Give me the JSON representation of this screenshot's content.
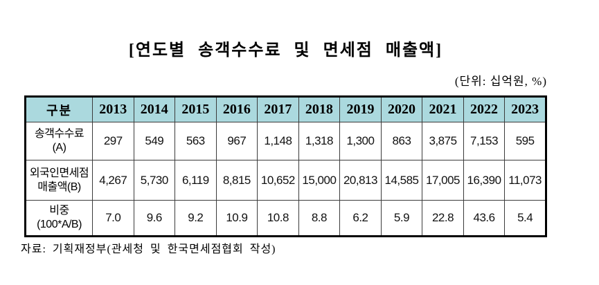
{
  "title": "[연도별 송객수수료 및 면세점 매출액]",
  "unit_note": "(단위: 십억원, %)",
  "source_note": "자료: 기획재정부(관세청 및 한국면세점협회 작성)",
  "colors": {
    "header_bg": "#abd9de",
    "outer_border": "#000000",
    "inner_border": "#3a3a3a"
  },
  "table": {
    "corner_header": "구분",
    "year_headers": [
      "2013",
      "2014",
      "2015",
      "2016",
      "2017",
      "2018",
      "2019",
      "2020",
      "2021",
      "2022",
      "2023"
    ],
    "rows": [
      {
        "label_lines": [
          "송객수수료",
          "(A)"
        ],
        "values": [
          "297",
          "549",
          "563",
          "967",
          "1,148",
          "1,318",
          "1,300",
          "863",
          "3,875",
          "7,153",
          "595"
        ]
      },
      {
        "label_lines": [
          "외국인면세점",
          "매출액(B)"
        ],
        "values": [
          "4,267",
          "5,730",
          "6,119",
          "8,815",
          "10,652",
          "15,000",
          "20,813",
          "14,585",
          "17,005",
          "16,390",
          "11,073"
        ]
      },
      {
        "label_lines": [
          "비중",
          "(100*A/B)"
        ],
        "values": [
          "7.0",
          "9.6",
          "9.2",
          "10.9",
          "10.8",
          "8.8",
          "6.2",
          "5.9",
          "22.8",
          "43.6",
          "5.4"
        ]
      }
    ]
  },
  "chart_data": {
    "type": "table",
    "title": "[연도별 송객수수료 및 면세점 매출액]",
    "unit": "십억원, %",
    "categories": [
      2013,
      2014,
      2015,
      2016,
      2017,
      2018,
      2019,
      2020,
      2021,
      2022,
      2023
    ],
    "series": [
      {
        "name": "송객수수료(A)",
        "values": [
          297,
          549,
          563,
          967,
          1148,
          1318,
          1300,
          863,
          3875,
          7153,
          595
        ]
      },
      {
        "name": "외국인면세점 매출액(B)",
        "values": [
          4267,
          5730,
          6119,
          8815,
          10652,
          15000,
          20813,
          14585,
          17005,
          16390,
          11073
        ]
      },
      {
        "name": "비중(100*A/B)",
        "values": [
          7.0,
          9.6,
          9.2,
          10.9,
          10.8,
          8.8,
          6.2,
          5.9,
          22.8,
          43.6,
          5.4
        ]
      }
    ]
  }
}
